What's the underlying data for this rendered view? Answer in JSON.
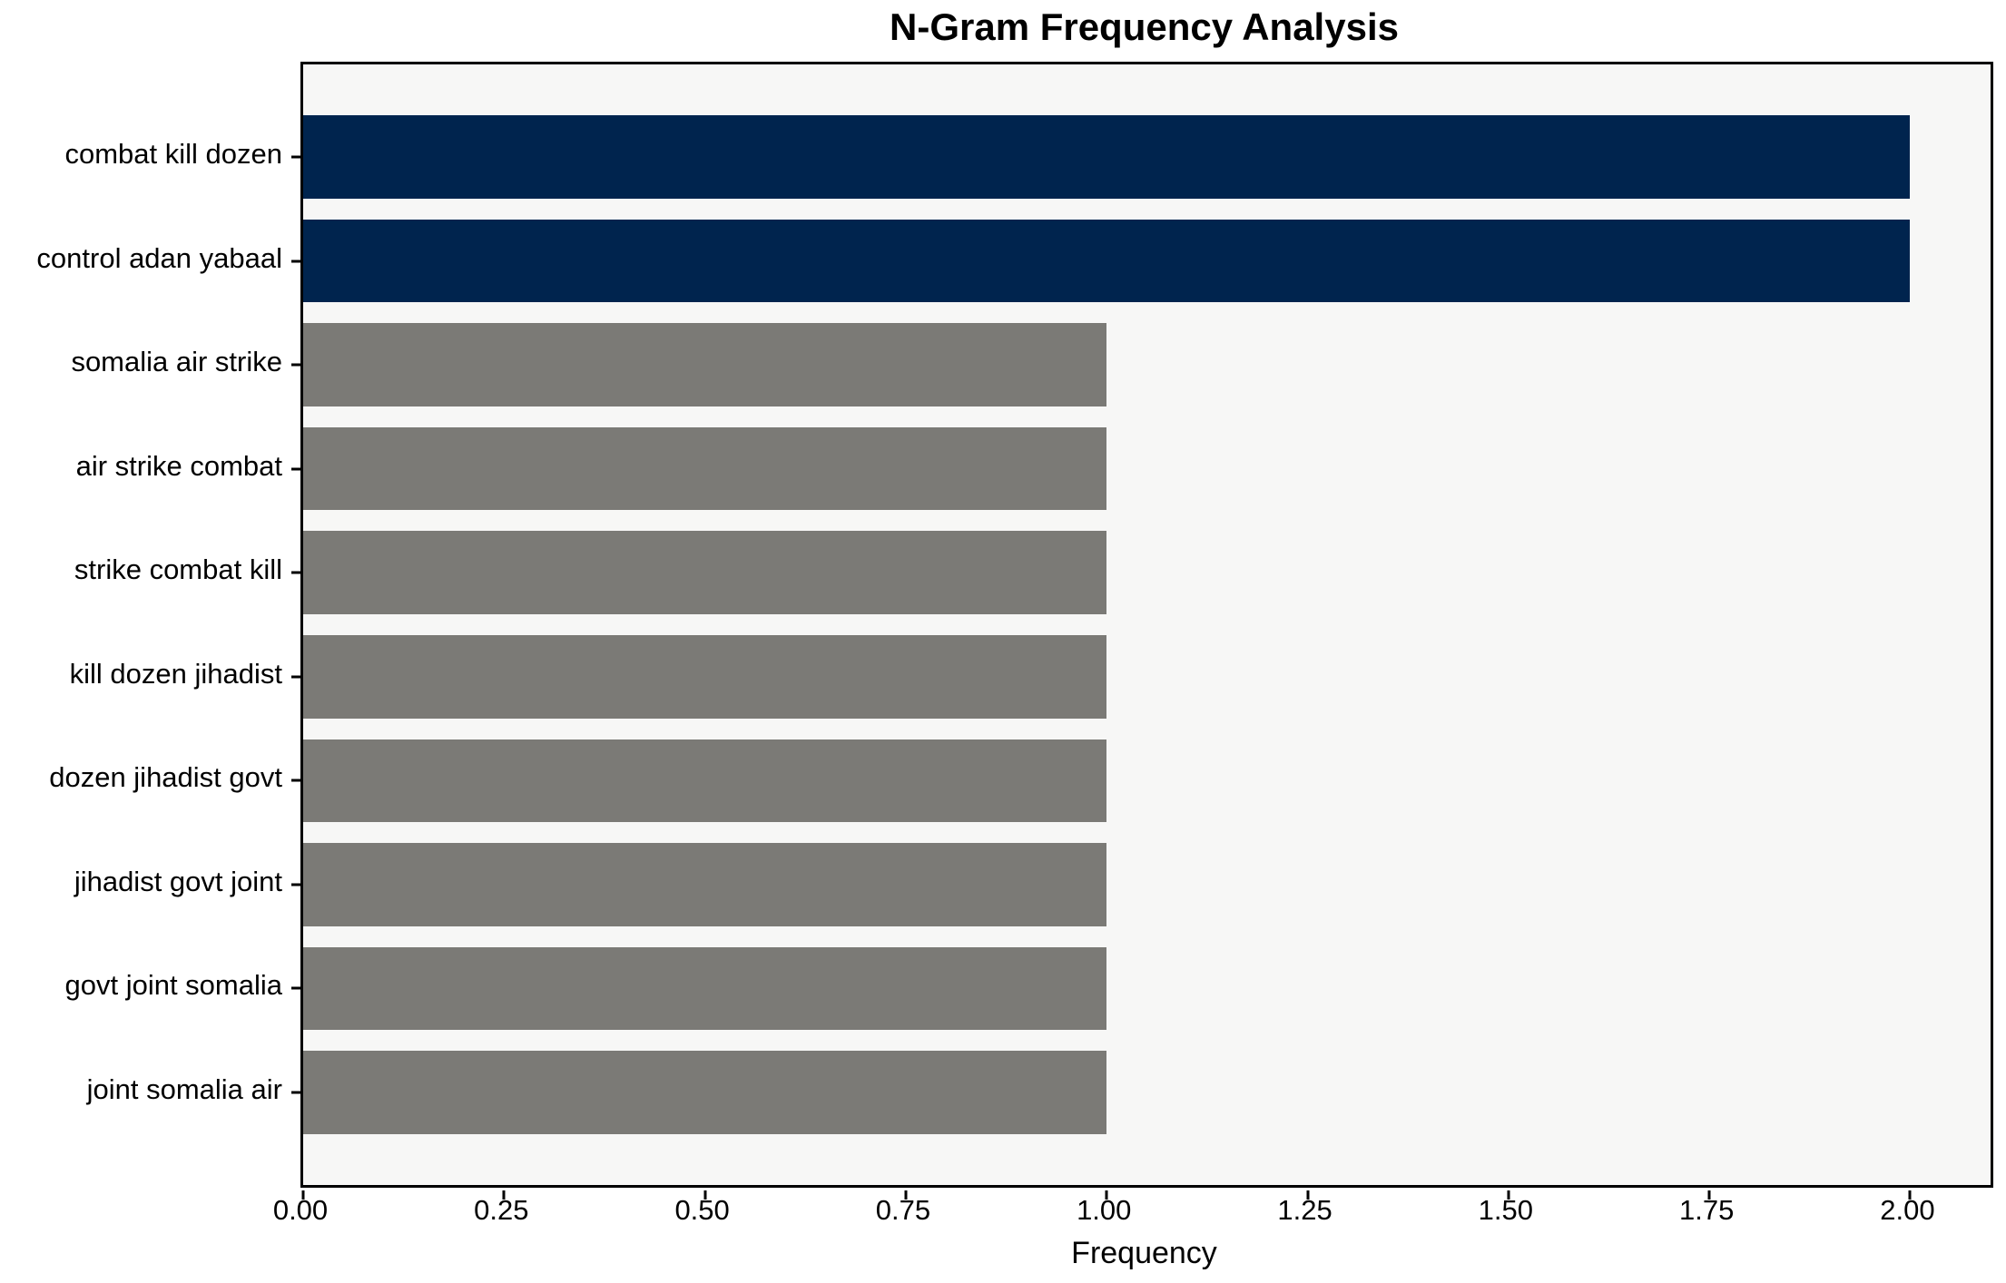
{
  "figure": {
    "background": "#ffffff",
    "plot_background": "#f7f7f6",
    "spine_color": "#000000"
  },
  "chart_data": {
    "type": "bar",
    "orientation": "horizontal",
    "title": "N-Gram Frequency Analysis",
    "xlabel": "Frequency",
    "ylabel": "",
    "categories": [
      "combat kill dozen",
      "control adan yabaal",
      "somalia air strike",
      "air strike combat",
      "strike combat kill",
      "kill dozen jihadist",
      "dozen jihadist govt",
      "jihadist govt joint",
      "govt joint somalia",
      "joint somalia air"
    ],
    "values": [
      2,
      2,
      1,
      1,
      1,
      1,
      1,
      1,
      1,
      1
    ],
    "colors": [
      "#00244e",
      "#00244e",
      "#7b7a76",
      "#7b7a76",
      "#7b7a76",
      "#7b7a76",
      "#7b7a76",
      "#7b7a76",
      "#7b7a76",
      "#7b7a76"
    ],
    "highlight_color": "#00244e",
    "default_color": "#7b7a76",
    "xlim": [
      0,
      2.1
    ],
    "xticks": {
      "values": [
        0,
        0.25,
        0.5,
        0.75,
        1.0,
        1.25,
        1.5,
        1.75,
        2.0
      ],
      "labels": [
        "0.00",
        "0.25",
        "0.50",
        "0.75",
        "1.00",
        "1.25",
        "1.50",
        "1.75",
        "2.00"
      ]
    },
    "bar_height_fraction": 0.8,
    "grid": false,
    "legend": null
  }
}
